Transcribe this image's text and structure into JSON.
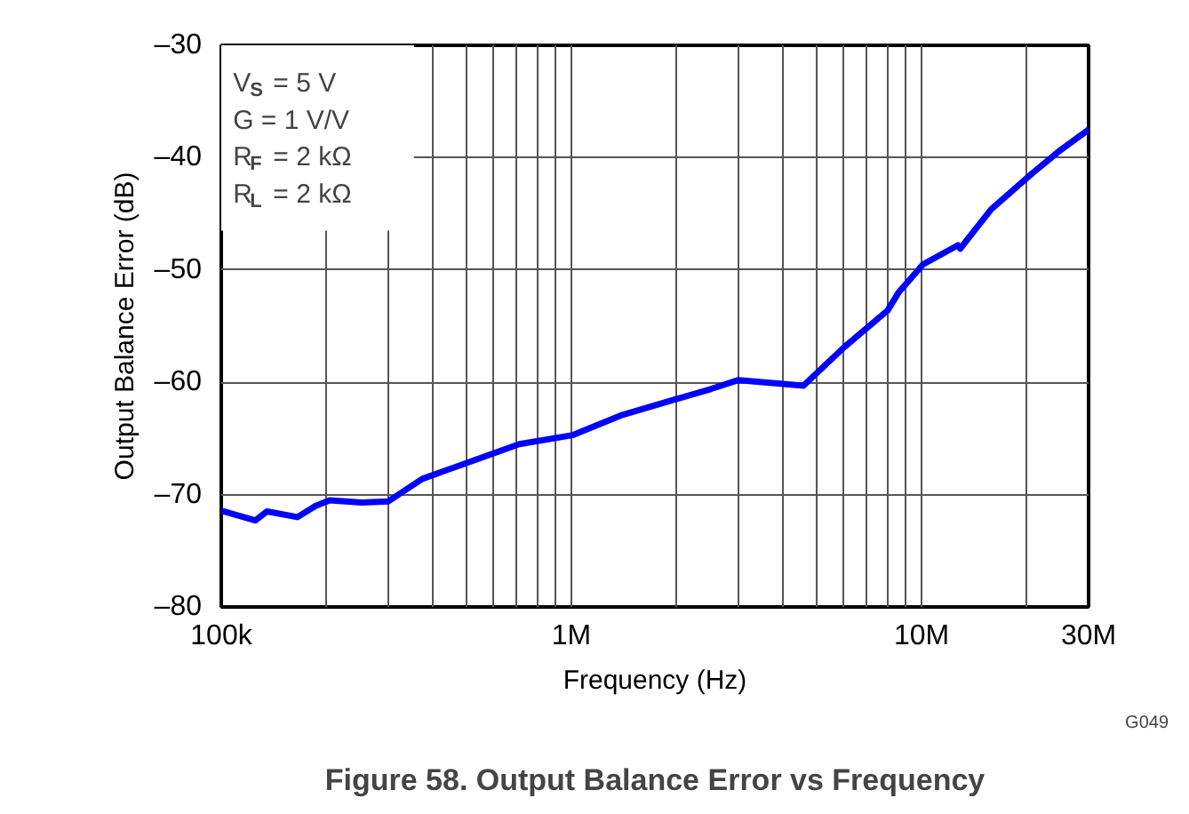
{
  "chart_data": {
    "type": "line",
    "title": "Figure 58. Output Balance Error vs Frequency",
    "xlabel": "Frequency (Hz)",
    "ylabel": "Output Balance Error (dB)",
    "annotations": [
      "V$_{S}$ = 5 V",
      "G = 1 V/V",
      "R$_{F}$ = 2 kΩ",
      "R$_{L}$ = 2 kΩ",
      "G049"
    ],
    "log": "x",
    "xlim": [
      100000,
      30000000
    ],
    "ylim": [
      -80,
      -30
    ],
    "xticks": [
      {
        "value": 100000,
        "label": "100k"
      },
      {
        "value": 200000,
        "label": null
      },
      {
        "value": 300000,
        "label": null
      },
      {
        "value": 400000,
        "label": null
      },
      {
        "value": 500000,
        "label": null
      },
      {
        "value": 600000,
        "label": null
      },
      {
        "value": 700000,
        "label": null
      },
      {
        "value": 800000,
        "label": null
      },
      {
        "value": 900000,
        "label": null
      },
      {
        "value": 1000000,
        "label": "1M"
      },
      {
        "value": 2000000,
        "label": null
      },
      {
        "value": 3000000,
        "label": null
      },
      {
        "value": 4000000,
        "label": null
      },
      {
        "value": 5000000,
        "label": null
      },
      {
        "value": 6000000,
        "label": null
      },
      {
        "value": 7000000,
        "label": null
      },
      {
        "value": 8000000,
        "label": null
      },
      {
        "value": 9000000,
        "label": null
      },
      {
        "value": 10000000,
        "label": "10M"
      },
      {
        "value": 20000000,
        "label": null
      },
      {
        "value": 30000000,
        "label": "30M"
      }
    ],
    "yticks": [
      {
        "value": -80,
        "label": "–80"
      },
      {
        "value": -70,
        "label": "–70"
      },
      {
        "value": -60,
        "label": "–60"
      },
      {
        "value": -50,
        "label": "–50"
      },
      {
        "value": -40,
        "label": "–40"
      },
      {
        "value": -30,
        "label": "–30"
      }
    ],
    "grid": true,
    "line_style": "solid",
    "series": [
      {
        "color": "#0000ff",
        "x": [
          100000,
          102000,
          125000,
          135000,
          165000,
          186000,
          204000,
          252000,
          300000,
          375000,
          490000,
          710000,
          1010000,
          1400000,
          1990000,
          2500000,
          3000000,
          4600000,
          6000000,
          8000000,
          8600000,
          10100000,
          12700000,
          12900000,
          15800000,
          20700000,
          25000000,
          30000000
        ],
        "values": [
          -71.5,
          -71.5,
          -72.3,
          -71.5,
          -72,
          -71,
          -70.5,
          -70.7,
          -70.6,
          -68.6,
          -67.3,
          -65.5,
          -64.7,
          -62.9,
          -61.5,
          -60.6,
          -59.8,
          -60.3,
          -56.9,
          -53.6,
          -52,
          -49.5,
          -47.8,
          -48.1,
          -44.6,
          -41.4,
          -39.3,
          -37.5
        ]
      }
    ]
  }
}
